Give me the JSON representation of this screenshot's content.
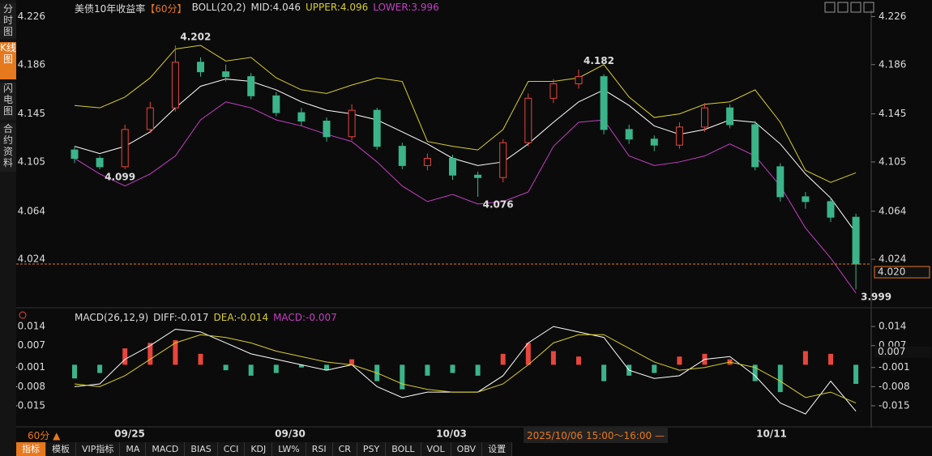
{
  "sidebar": [
    "分时图",
    "K线图",
    "闪电图",
    "合约资料"
  ],
  "header": {
    "title": "美债10年收益率",
    "period": "【60分】",
    "boll": "BOLL(20,2)",
    "mid": "MID:4.046",
    "upper": "UPPER:4.096",
    "lower": "LOWER:3.996"
  },
  "macd_header": {
    "name": "MACD(26,12,9)",
    "diff": "DIFF:-0.017",
    "dea": "DEA:-0.014",
    "macd": "MACD:-0.007"
  },
  "time_axis": {
    "period": "60分",
    "labels": [
      "09/25",
      "09/30",
      "10/03",
      "10/11"
    ],
    "cursor": "2025/10/06 15:00～16:00"
  },
  "tabs": [
    "指标",
    "模板",
    "VIP指标",
    "MA",
    "MACD",
    "BIAS",
    "CCI",
    "KDJ",
    "LW%",
    "RSI",
    "CR",
    "PSY",
    "BOLL",
    "VOL",
    "OBV",
    "设置"
  ],
  "chart_data": [
    {
      "type": "candlestick",
      "open": [
        4.115,
        4.108,
        4.101,
        4.132,
        4.15,
        4.188,
        4.18,
        4.176,
        4.16,
        4.146,
        4.139,
        4.126,
        4.148,
        4.118,
        4.102,
        4.108,
        4.094,
        4.092,
        4.121,
        4.158,
        4.17,
        4.176,
        4.132,
        4.124,
        4.119,
        4.134,
        4.15,
        4.136,
        4.101,
        4.076,
        4.072,
        4.059
      ],
      "high": [
        4.118,
        4.11,
        4.136,
        4.155,
        4.202,
        4.192,
        4.186,
        4.179,
        4.163,
        4.15,
        4.142,
        4.153,
        4.15,
        4.121,
        4.112,
        4.111,
        4.097,
        4.124,
        4.162,
        4.174,
        4.182,
        4.178,
        4.136,
        4.127,
        4.138,
        4.154,
        4.153,
        4.139,
        4.104,
        4.08,
        4.075,
        4.062
      ],
      "low": [
        4.104,
        4.099,
        4.099,
        4.129,
        4.147,
        4.176,
        4.172,
        4.157,
        4.143,
        4.135,
        4.122,
        4.123,
        4.115,
        4.099,
        4.098,
        4.09,
        4.076,
        4.088,
        4.118,
        4.154,
        4.166,
        4.128,
        4.12,
        4.114,
        4.116,
        4.13,
        4.133,
        4.098,
        4.072,
        4.066,
        4.055,
        3.999
      ],
      "close": [
        4.108,
        4.101,
        4.132,
        4.15,
        4.188,
        4.18,
        4.176,
        4.16,
        4.146,
        4.139,
        4.126,
        4.148,
        4.118,
        4.102,
        4.108,
        4.094,
        4.092,
        4.121,
        4.158,
        4.17,
        4.176,
        4.132,
        4.124,
        4.119,
        4.134,
        4.15,
        4.136,
        4.101,
        4.076,
        4.072,
        4.059,
        4.02
      ],
      "up_color": "#e8453c",
      "down_color": "#3bb48a",
      "series": [
        {
          "color": "#d8cd2c",
          "values": [
            4.152,
            4.15,
            4.159,
            4.175,
            4.199,
            4.202,
            4.189,
            4.192,
            4.175,
            4.165,
            4.162,
            4.169,
            4.175,
            4.172,
            4.122,
            4.118,
            4.115,
            4.132,
            4.172,
            4.172,
            4.175,
            4.186,
            4.159,
            4.142,
            4.145,
            4.153,
            4.155,
            4.165,
            4.138,
            4.098,
            4.088,
            4.096
          ]
        },
        {
          "color": "#ffffff",
          "values": [
            4.118,
            4.112,
            4.118,
            4.13,
            4.15,
            4.168,
            4.174,
            4.172,
            4.165,
            4.155,
            4.148,
            4.145,
            4.14,
            4.13,
            4.12,
            4.108,
            4.102,
            4.105,
            4.12,
            4.138,
            4.155,
            4.165,
            4.152,
            4.135,
            4.128,
            4.132,
            4.14,
            4.138,
            4.12,
            4.095,
            4.075,
            4.046
          ]
        },
        {
          "color": "#c43fc4",
          "values": [
            4.108,
            4.095,
            4.085,
            4.095,
            4.11,
            4.14,
            4.155,
            4.15,
            4.14,
            4.135,
            4.128,
            4.122,
            4.105,
            4.085,
            4.072,
            4.078,
            4.07,
            4.072,
            4.08,
            4.118,
            4.138,
            4.14,
            4.11,
            4.102,
            4.105,
            4.11,
            4.12,
            4.11,
            4.085,
            4.05,
            4.025,
            3.996
          ]
        }
      ],
      "annotations": [
        4.202,
        4.099,
        4.182,
        4.076,
        3.999
      ],
      "current": {
        "value": 4.02,
        "label": "4.020"
      },
      "ylim": [
        3.987,
        4.231
      ],
      "yticks": [
        4.226,
        4.186,
        4.145,
        4.105,
        4.064,
        4.024
      ]
    },
    {
      "type": "macd",
      "histogram": [
        -0.005,
        -0.003,
        0.006,
        0.008,
        0.009,
        0.004,
        -0.002,
        -0.004,
        -0.003,
        -0.001,
        -0.002,
        0.002,
        -0.006,
        -0.009,
        -0.004,
        -0.003,
        -0.004,
        0.004,
        0.008,
        0.005,
        0.003,
        -0.006,
        -0.004,
        -0.003,
        0.003,
        0.004,
        0.002,
        -0.006,
        -0.01,
        0.005,
        0.004,
        -0.007
      ],
      "series": [
        {
          "color": "#ffffff",
          "values": [
            -0.008,
            -0.007,
            0.002,
            0.007,
            0.013,
            0.012,
            0.008,
            0.004,
            0.002,
            0.0,
            -0.002,
            0.0,
            -0.008,
            -0.012,
            -0.01,
            -0.01,
            -0.01,
            -0.004,
            0.008,
            0.014,
            0.012,
            0.01,
            -0.002,
            -0.005,
            -0.004,
            0.002,
            0.003,
            -0.004,
            -0.014,
            -0.018,
            -0.006,
            -0.017
          ]
        },
        {
          "color": "#d8cd2c",
          "values": [
            -0.007,
            -0.008,
            -0.004,
            0.002,
            0.008,
            0.011,
            0.01,
            0.008,
            0.005,
            0.003,
            0.001,
            0.0,
            -0.003,
            -0.007,
            -0.009,
            -0.01,
            -0.01,
            -0.007,
            0.0,
            0.008,
            0.011,
            0.011,
            0.006,
            0.001,
            -0.002,
            -0.001,
            0.001,
            -0.001,
            -0.006,
            -0.012,
            -0.01,
            -0.014
          ]
        }
      ],
      "marker": 0.007,
      "ylim": [
        -0.0236,
        0.0164
      ],
      "yticks": [
        0.014,
        0.007,
        -0.001,
        -0.008,
        -0.015
      ]
    }
  ]
}
